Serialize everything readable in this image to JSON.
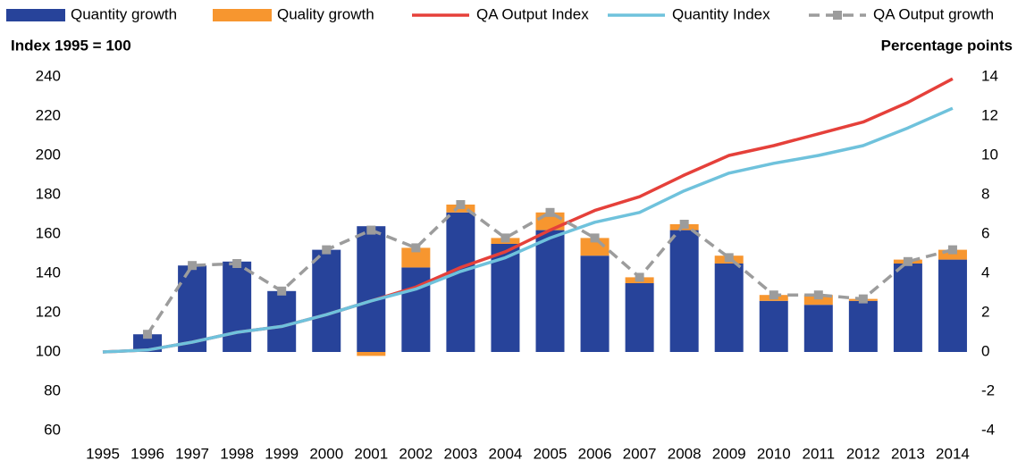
{
  "chart_data": {
    "type": "bar",
    "y_label": "Index 1995 = 100",
    "y2_label": "Percentage points",
    "categories": [
      "1995",
      "1996",
      "1997",
      "1998",
      "1999",
      "2000",
      "2001",
      "2002",
      "2003",
      "2004",
      "2005",
      "2006",
      "2007",
      "2008",
      "2009",
      "2010",
      "2011",
      "2012",
      "2013",
      "2014"
    ],
    "stacked": true,
    "ylim": [
      60,
      240
    ],
    "yticks": [
      60,
      80,
      100,
      120,
      140,
      160,
      180,
      200,
      220,
      240
    ],
    "y2lim": [
      -4,
      14
    ],
    "y2ticks": [
      -4,
      -2,
      0,
      2,
      4,
      6,
      8,
      10,
      12,
      14
    ],
    "series": [
      {
        "name": "Quantity growth",
        "type": "bar",
        "axis": "y2",
        "color": "#27439a",
        "values": [
          null,
          0.9,
          4.4,
          4.6,
          3.1,
          5.2,
          6.4,
          4.3,
          7.1,
          5.5,
          6.2,
          4.9,
          3.5,
          6.2,
          4.5,
          2.6,
          2.4,
          2.6,
          4.5,
          4.7
        ]
      },
      {
        "name": "Quality growth",
        "type": "bar",
        "axis": "y2",
        "color": "#f7962f",
        "values": [
          null,
          0,
          0,
          0,
          0,
          0,
          -0.2,
          1.0,
          0.4,
          0.3,
          0.9,
          0.9,
          0.3,
          0.3,
          0.4,
          0.3,
          0.5,
          0.1,
          0.2,
          0.5
        ]
      },
      {
        "name": "QA Output Index",
        "type": "line",
        "color": "#e5403a",
        "values": [
          100,
          101,
          105,
          110,
          113,
          119,
          126,
          133,
          143,
          151,
          162,
          172,
          179,
          190,
          200,
          205,
          211,
          217,
          227,
          239
        ]
      },
      {
        "name": "Quantity Index",
        "type": "line",
        "color": "#6fc2dc",
        "values": [
          100,
          101,
          105,
          110,
          113,
          119,
          126,
          132,
          141,
          148,
          158,
          166,
          171,
          182,
          191,
          196,
          200,
          205,
          214,
          224
        ]
      },
      {
        "name": "QA Output growth",
        "type": "line",
        "axis": "y2",
        "color": "#9c9c9c",
        "dashed": true,
        "marker": "square",
        "values": [
          null,
          0.9,
          4.4,
          4.5,
          3.1,
          5.2,
          6.2,
          5.3,
          7.5,
          5.8,
          7.1,
          5.8,
          3.8,
          6.5,
          4.8,
          2.9,
          2.9,
          2.7,
          4.6,
          5.2
        ]
      }
    ]
  }
}
